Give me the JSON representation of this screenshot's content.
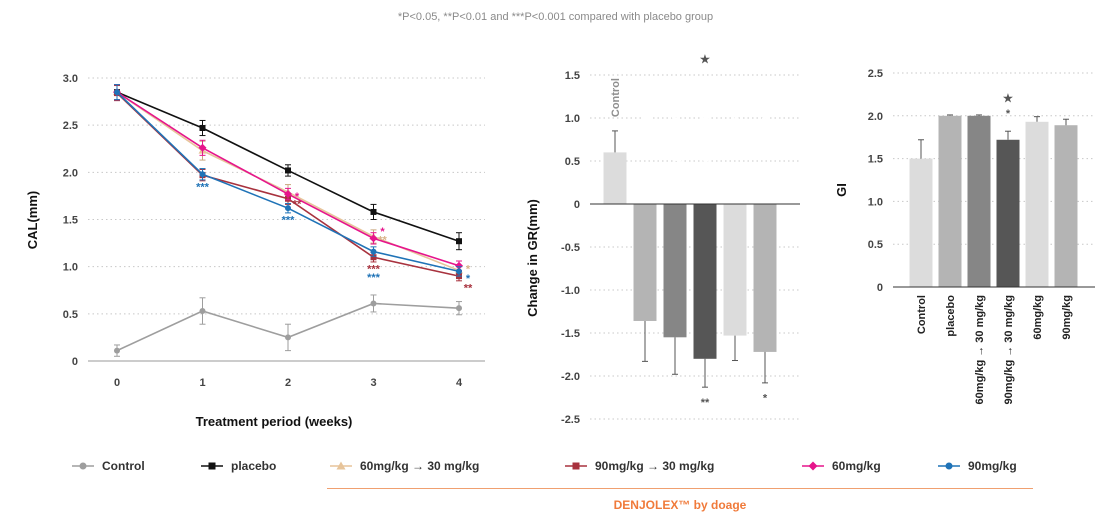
{
  "footnote": "*P<0.05, **P<0.01 and ***P<0.001 compared with placebo group",
  "brand": "DENJOLEX™ by doage",
  "legend": [
    {
      "name": "Control",
      "color": "#9e9e9e",
      "marker": "circle"
    },
    {
      "name": "placebo",
      "color": "#111111",
      "marker": "square"
    },
    {
      "name": "60mg/kg → 30 mg/kg",
      "color": "#e7c49a",
      "marker": "triangle"
    },
    {
      "name": "90mg/kg → 30 mg/kg",
      "color": "#a8323e",
      "marker": "square"
    },
    {
      "name": "60mg/kg",
      "color": "#e6158c",
      "marker": "diamond"
    },
    {
      "name": "90mg/kg",
      "color": "#1f73b7",
      "marker": "circle"
    }
  ],
  "chart_data": [
    {
      "type": "line",
      "xlabel": "Treatment period (weeks)",
      "ylabel": "CAL(mm)",
      "x": [
        0,
        1,
        2,
        3,
        4
      ],
      "xticks": [
        "0",
        "1",
        "2",
        "3",
        "4"
      ],
      "ylim": [
        0,
        3.0
      ],
      "yticks": [
        "0",
        "0.5",
        "1.0",
        "1.5",
        "2.0",
        "2.5",
        "3.0"
      ],
      "grid": "horizontal dotted",
      "series": [
        {
          "name": "Control",
          "color": "#9e9e9e",
          "marker": "circle",
          "values": [
            0.11,
            0.53,
            0.25,
            0.61,
            0.56
          ],
          "err": [
            0.06,
            0.14,
            0.14,
            0.09,
            0.07
          ]
        },
        {
          "name": "placebo",
          "color": "#111111",
          "marker": "square",
          "values": [
            2.85,
            2.47,
            2.02,
            1.58,
            1.27
          ],
          "err": [
            0.08,
            0.08,
            0.06,
            0.08,
            0.09
          ]
        },
        {
          "name": "60mg/kg → 30 mg/kg",
          "color": "#e7c49a",
          "marker": "triangle",
          "values": [
            2.85,
            2.23,
            1.79,
            1.32,
            0.96
          ],
          "err": [
            0.08,
            0.1,
            0.08,
            0.07,
            0.05
          ]
        },
        {
          "name": "90mg/kg → 30 mg/kg",
          "color": "#a8323e",
          "marker": "square",
          "values": [
            2.84,
            1.97,
            1.72,
            1.1,
            0.9
          ],
          "err": [
            0.08,
            0.06,
            0.06,
            0.05,
            0.05
          ]
        },
        {
          "name": "60mg/kg",
          "color": "#e6158c",
          "marker": "diamond",
          "values": [
            2.85,
            2.26,
            1.77,
            1.3,
            1.01
          ],
          "err": [
            0.08,
            0.08,
            0.06,
            0.06,
            0.05
          ]
        },
        {
          "name": "90mg/kg",
          "color": "#1f73b7",
          "marker": "circle",
          "values": [
            2.85,
            1.98,
            1.62,
            1.16,
            0.95
          ],
          "err": [
            0.08,
            0.06,
            0.05,
            0.05,
            0.05
          ]
        }
      ],
      "annotations": [
        {
          "text": "***",
          "x": 1,
          "y": 1.85,
          "color": "#1f73b7"
        },
        {
          "text": "*",
          "x": 2,
          "y": 1.75,
          "color": "#e6158c"
        },
        {
          "text": "**",
          "x": 2,
          "y": 1.67,
          "color": "#a8323e"
        },
        {
          "text": "***",
          "x": 2,
          "y": 1.5,
          "color": "#1f73b7"
        },
        {
          "text": "*",
          "x": 3,
          "y": 1.38,
          "color": "#e6158c"
        },
        {
          "text": "**",
          "x": 3,
          "y": 1.29,
          "color": "#d9b48a"
        },
        {
          "text": "***",
          "x": 3,
          "y": 0.98,
          "color": "#a8323e"
        },
        {
          "text": "***",
          "x": 3,
          "y": 0.89,
          "color": "#1f73b7"
        },
        {
          "text": "*",
          "x": 4,
          "y": 0.98,
          "color": "#d9b48a"
        },
        {
          "text": "*",
          "x": 4,
          "y": 0.88,
          "color": "#1f73b7"
        },
        {
          "text": "**",
          "x": 4,
          "y": 0.78,
          "color": "#a8323e"
        }
      ]
    },
    {
      "type": "bar",
      "ylabel": "Change in GR(mm)",
      "categories": [
        "Control",
        "placebo",
        "60mg/kg → 30 mg/kg",
        "90mg/kg → 30 mg/kg",
        "60mg/kg",
        "90mg/kg"
      ],
      "values": [
        0.6,
        -1.36,
        -1.55,
        -1.8,
        -1.53,
        -1.72
      ],
      "err": [
        0.25,
        0.47,
        0.43,
        0.33,
        0.29,
        0.36
      ],
      "colors": [
        "#dcdcdc",
        "#b4b4b4",
        "#868686",
        "#565656",
        "#dcdcdc",
        "#b4b4b4"
      ],
      "ylim": [
        -2.5,
        1.5
      ],
      "yticks": [
        "-2.5",
        "-2.0",
        "-1.5",
        "-1.0",
        "-0.5",
        "0",
        "0.5",
        "1.0",
        "1.5"
      ],
      "grid": "horizontal dotted",
      "annotations": [
        {
          "text": "★",
          "bar": 3,
          "y": 1.68
        },
        {
          "text": "**",
          "bar": 3,
          "y": -2.3
        },
        {
          "text": "*",
          "bar": 5,
          "y": -2.25
        }
      ]
    },
    {
      "type": "bar",
      "ylabel": "GI",
      "categories": [
        "Control",
        "placebo",
        "60mg/kg → 30 mg/kg",
        "90mg/kg → 30 mg/kg",
        "60mg/kg",
        "90mg/kg"
      ],
      "values": [
        1.5,
        2.0,
        2.0,
        1.72,
        1.93,
        1.89
      ],
      "err": [
        0.22,
        0.01,
        0.01,
        0.1,
        0.06,
        0.07
      ],
      "colors": [
        "#dcdcdc",
        "#b4b4b4",
        "#868686",
        "#565656",
        "#dcdcdc",
        "#b4b4b4"
      ],
      "ylim": [
        0,
        2.5
      ],
      "yticks": [
        "0",
        "0.5",
        "1.0",
        "1.5",
        "2.0",
        "2.5"
      ],
      "grid": "horizontal dotted",
      "annotations": [
        {
          "text": "★",
          "bar": 3,
          "y": 2.2
        },
        {
          "text": "*",
          "bar": 3,
          "y": 2.03
        }
      ]
    }
  ]
}
